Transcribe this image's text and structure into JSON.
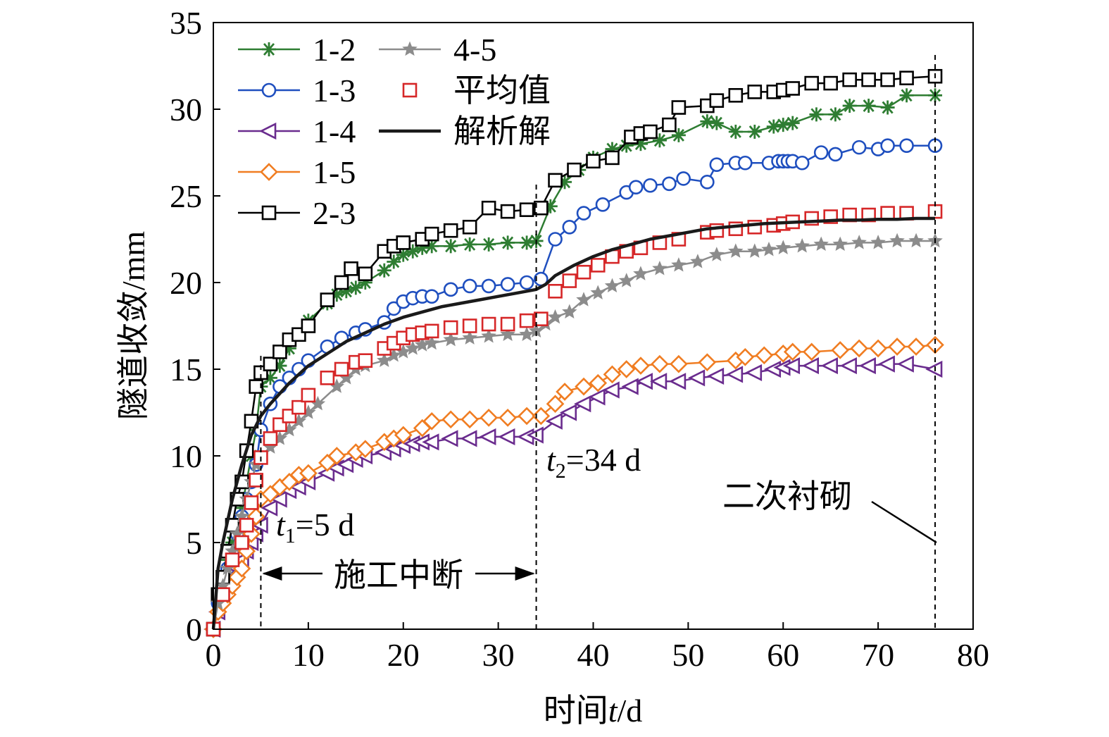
{
  "chart_data": {
    "type": "line",
    "xlabel_prefix": "时间",
    "xlabel_var": "t",
    "xlabel_unit": "/d",
    "ylabel": "隧道收敛/mm",
    "xlim": [
      0,
      80
    ],
    "ylim": [
      0,
      35
    ],
    "xticks": [
      "0",
      "10",
      "20",
      "30",
      "40",
      "50",
      "60",
      "70",
      "80"
    ],
    "yticks": [
      "0",
      "5",
      "10",
      "15",
      "20",
      "25",
      "30",
      "35"
    ],
    "grid": false,
    "legend_position": "top-left",
    "series": [
      {
        "name": "1-2",
        "color": "#2e7d32",
        "marker": "asterisk",
        "x": [
          0,
          0.5,
          1,
          1.5,
          2,
          2.5,
          3,
          3.5,
          4,
          4.5,
          5,
          6,
          7,
          8,
          9,
          10,
          12,
          13,
          14,
          15,
          16,
          18,
          19,
          20,
          21,
          22,
          23,
          25,
          27,
          29,
          31,
          33,
          34,
          35.5,
          37,
          38.5,
          40,
          42,
          43.5,
          45,
          47,
          49,
          52,
          53,
          55,
          57,
          59,
          60,
          61,
          63.5,
          65.5,
          67,
          69,
          71,
          73,
          76
        ],
        "y": [
          0,
          2,
          3,
          4,
          5,
          6,
          7,
          8.5,
          10,
          11.5,
          14,
          14.5,
          15.2,
          16.2,
          17,
          17.8,
          18.8,
          19.3,
          19.5,
          19.7,
          20,
          20.7,
          21.2,
          21.6,
          21.8,
          22,
          22.1,
          22.1,
          22.2,
          22.2,
          22.3,
          22.3,
          22.4,
          24.4,
          25.8,
          26.5,
          27.2,
          27.7,
          27.9,
          28,
          28.2,
          28.5,
          29.3,
          29.2,
          28.7,
          28.7,
          29,
          29.1,
          29.2,
          29.7,
          29.7,
          30.2,
          30.2,
          30.1,
          30.8,
          30.8
        ]
      },
      {
        "name": "1-3",
        "color": "#1f4fbf",
        "marker": "circle",
        "x": [
          0,
          0.5,
          1,
          1.5,
          2,
          2.5,
          3,
          3.5,
          4,
          4.5,
          5,
          6,
          7,
          8,
          9,
          10,
          12,
          13.5,
          15,
          16,
          18,
          19,
          20,
          21,
          22,
          23,
          25,
          27,
          29,
          31,
          33,
          34.5,
          36,
          37.5,
          39,
          41,
          43.5,
          44.5,
          46,
          48,
          49.5,
          52,
          53,
          55,
          56,
          58.5,
          59.5,
          60,
          60.5,
          61,
          62,
          64,
          65.5,
          68,
          70,
          71,
          73,
          76
        ],
        "y": [
          0,
          1.5,
          2.5,
          3.5,
          4.5,
          5.5,
          6.5,
          7.5,
          8.5,
          9.5,
          11.5,
          13,
          14,
          14.5,
          15,
          15.5,
          16.3,
          16.8,
          17.1,
          17.3,
          17.7,
          18.5,
          18.9,
          19.1,
          19.2,
          19.2,
          19.6,
          19.8,
          19.8,
          19.9,
          20,
          20.2,
          22.5,
          23.2,
          24,
          24.5,
          25.2,
          25.5,
          25.6,
          25.7,
          26,
          25.8,
          26.8,
          26.9,
          26.9,
          26.9,
          27,
          27,
          27,
          27,
          26.9,
          27.5,
          27.4,
          27.8,
          27.7,
          27.9,
          27.9,
          27.9
        ]
      },
      {
        "name": "1-4",
        "color": "#6a2c8e",
        "marker": "triangle-left",
        "x": [
          0,
          0.5,
          1,
          1.5,
          2,
          2.5,
          3,
          3.5,
          4,
          4.5,
          5,
          6,
          7,
          8,
          9,
          10,
          12,
          13,
          14,
          15,
          16,
          18,
          19,
          20,
          21,
          22,
          23,
          25,
          27,
          29,
          31,
          33,
          34,
          36,
          37.5,
          39,
          40.5,
          42,
          44,
          45.5,
          47,
          49,
          51,
          53,
          55,
          57,
          59,
          60,
          61,
          63,
          65,
          67,
          69,
          71,
          73,
          76
        ],
        "y": [
          0,
          1,
          2,
          2.5,
          3,
          3.5,
          4,
          4.5,
          5,
          5.5,
          6,
          7,
          7.5,
          8,
          8.2,
          8.5,
          9,
          9.3,
          9.5,
          9.8,
          10,
          10.2,
          10.4,
          10.6,
          10.7,
          10.8,
          10.8,
          11,
          11,
          11.1,
          11.1,
          11.1,
          11.2,
          12,
          12.5,
          13,
          13.4,
          13.8,
          14,
          14.3,
          14.3,
          14.3,
          14.5,
          14.6,
          14.7,
          14.8,
          15,
          15.1,
          15.2,
          15.2,
          15.2,
          15.2,
          15.2,
          15.3,
          15.3,
          15
        ]
      },
      {
        "name": "1-5",
        "color": "#f07d22",
        "marker": "diamond",
        "x": [
          0,
          0.5,
          1,
          1.5,
          2,
          2.5,
          3,
          3.5,
          4,
          4.5,
          5,
          6,
          7,
          8,
          9,
          10,
          12,
          13,
          15,
          16,
          18,
          19,
          20,
          22,
          23,
          25,
          27,
          29,
          31,
          33,
          34.5,
          36,
          37,
          39,
          40.5,
          42,
          43.5,
          45,
          47,
          49,
          52,
          55,
          56,
          58,
          60,
          61,
          63,
          66,
          68,
          70,
          72,
          74,
          76
        ],
        "y": [
          0,
          1,
          1.5,
          2,
          2.5,
          3,
          3.5,
          4.5,
          5.5,
          6.5,
          7.5,
          7.8,
          8.2,
          8.5,
          8.9,
          9,
          9.6,
          10,
          10.2,
          10.4,
          10.8,
          11,
          11.2,
          11.6,
          12,
          12.1,
          12.1,
          12.2,
          12.2,
          12.3,
          12.3,
          13,
          13.7,
          14,
          14.2,
          14.7,
          15,
          15.2,
          15.3,
          15.3,
          15.4,
          15.5,
          15.7,
          15.8,
          15.9,
          16,
          16,
          16.1,
          16.2,
          16.2,
          16.3,
          16.3,
          16.4
        ]
      },
      {
        "name": "2-3",
        "color": "#000000",
        "marker": "square",
        "x": [
          0,
          0.5,
          1,
          1.5,
          2,
          2.5,
          3,
          3.5,
          4,
          4.5,
          5,
          6,
          7,
          8,
          9,
          10,
          12,
          13.5,
          14.5,
          16,
          18,
          19,
          20,
          22,
          23,
          25,
          27,
          29,
          31,
          33,
          34.5,
          36,
          38,
          40,
          42,
          44,
          45,
          46,
          48,
          49,
          52,
          53,
          55,
          57,
          59,
          60,
          61,
          63,
          65,
          67,
          69,
          71,
          73,
          76
        ],
        "y": [
          0,
          2,
          3,
          4.5,
          6,
          7.5,
          8.5,
          10.3,
          12,
          14,
          14.8,
          15.3,
          16,
          16.7,
          17,
          17.5,
          19,
          20,
          20.8,
          20.5,
          21.8,
          22.1,
          22.3,
          22.5,
          22.8,
          23,
          23.2,
          24.3,
          24.1,
          24.2,
          24.3,
          25.9,
          26.5,
          27,
          27.2,
          28.4,
          28.6,
          28.7,
          29.1,
          30.1,
          30.2,
          30.5,
          30.8,
          31,
          31,
          31.1,
          31.2,
          31.5,
          31.5,
          31.7,
          31.7,
          31.7,
          31.8,
          31.9
        ]
      },
      {
        "name": "4-5",
        "color": "#8c8c8c",
        "marker": "star",
        "x": [
          0,
          0.5,
          1,
          1.5,
          2,
          2.5,
          3,
          3.5,
          4,
          4.5,
          5,
          6,
          7,
          8,
          9,
          10,
          11,
          13,
          14,
          15,
          16,
          18,
          19,
          20,
          21,
          22,
          23,
          25,
          27,
          29,
          31,
          33,
          34,
          35,
          36,
          37.5,
          39,
          40.5,
          42,
          43.5,
          45,
          47,
          49,
          51,
          53,
          55,
          57,
          58.5,
          60,
          62,
          64,
          66,
          68,
          70,
          72,
          74,
          76
        ],
        "y": [
          0,
          1.5,
          2.5,
          3.5,
          4.5,
          5.5,
          6.5,
          7.5,
          8.5,
          9.5,
          10,
          10.5,
          11,
          11.5,
          12,
          12.5,
          13,
          14,
          14.5,
          15,
          15.2,
          15.5,
          15.8,
          16,
          16.2,
          16.4,
          16.5,
          16.7,
          16.8,
          16.9,
          17,
          17,
          17.2,
          17.6,
          18,
          18.3,
          19,
          19.4,
          19.8,
          20.1,
          20.5,
          20.8,
          21,
          21.2,
          21.6,
          21.8,
          21.8,
          21.9,
          22,
          22.1,
          22.2,
          22.2,
          22.3,
          22.3,
          22.4,
          22.4,
          22.4
        ]
      },
      {
        "name": "平均值",
        "color": "#d62728",
        "marker": "square-open",
        "x": [
          0,
          1,
          2,
          3,
          3.5,
          4,
          4.5,
          5,
          6,
          7,
          8,
          9,
          10,
          12,
          13.5,
          15,
          16,
          18,
          19,
          20,
          21,
          22,
          23,
          25,
          27,
          29,
          31,
          33,
          34.5,
          36,
          37.5,
          39,
          40.5,
          42,
          43.5,
          45,
          47,
          49,
          52,
          53,
          55,
          57,
          59,
          60,
          61,
          63,
          65,
          67,
          69,
          71,
          73,
          76
        ],
        "y": [
          0,
          2,
          4,
          5,
          6,
          7.3,
          8.6,
          9.9,
          11,
          11.8,
          12.3,
          12.8,
          13.5,
          14.5,
          15,
          15.4,
          15.5,
          16.2,
          16.5,
          16.8,
          17,
          17.1,
          17.2,
          17.4,
          17.5,
          17.6,
          17.6,
          17.8,
          17.9,
          19.5,
          20.1,
          20.6,
          21,
          21.5,
          21.8,
          22,
          22.3,
          22.5,
          22.9,
          23,
          23.1,
          23.2,
          23.3,
          23.4,
          23.5,
          23.7,
          23.8,
          23.9,
          23.9,
          24,
          24,
          24.1
        ]
      },
      {
        "name": "解析解",
        "color": "#1a1a1a",
        "marker": "none",
        "x": [
          0,
          0.5,
          1,
          2,
          3,
          4,
          5,
          6,
          8,
          10,
          12,
          14,
          16,
          18,
          20,
          22,
          24,
          26,
          28,
          30,
          32,
          34,
          35,
          36,
          38,
          40,
          42,
          44,
          46,
          48,
          50,
          52,
          54,
          56,
          58,
          60,
          62,
          64,
          66,
          68,
          70,
          72,
          74,
          76
        ],
        "y": [
          0,
          3.5,
          5,
          7.5,
          9.5,
          11.2,
          12.3,
          13,
          14.2,
          15.2,
          15.9,
          16.6,
          17.1,
          17.6,
          18,
          18.3,
          18.6,
          18.8,
          19,
          19.2,
          19.4,
          19.6,
          19.9,
          20.4,
          21,
          21.5,
          21.9,
          22.2,
          22.5,
          22.7,
          22.9,
          23.1,
          23.2,
          23.3,
          23.4,
          23.45,
          23.5,
          23.55,
          23.6,
          23.6,
          23.65,
          23.65,
          23.7,
          23.7
        ]
      }
    ],
    "vlines": [
      5,
      34,
      76
    ],
    "annotations": {
      "t1_var": "t",
      "t1_sub": "1",
      "t1_text": "=5 d",
      "t2_var": "t",
      "t2_sub": "2",
      "t2_text": "=34 d",
      "interruption": "施工中断",
      "lining": "二次衬砌"
    }
  }
}
